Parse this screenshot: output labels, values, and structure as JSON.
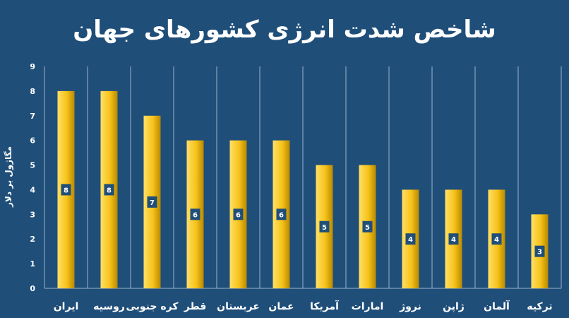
{
  "chart_data": {
    "type": "bar",
    "title": "شاخص شدت انرژی کشورهای جهان",
    "ylabel": "مگاژول بر دلار",
    "xlabel": "",
    "categories": [
      "ایران",
      "روسیه",
      "کره جنوبی",
      "قطر",
      "عربستان",
      "عمان",
      "آمریکا",
      "امارات",
      "نروژ",
      "ژاپن",
      "آلمان",
      "ترکیه"
    ],
    "values": [
      8,
      8,
      7,
      6,
      6,
      6,
      5,
      5,
      4,
      4,
      4,
      3
    ],
    "ylim": [
      0,
      9
    ],
    "yticks": [
      0,
      1,
      2,
      3,
      4,
      5,
      6,
      7,
      8,
      9
    ],
    "grid": "vertical separators",
    "legend": "none",
    "data_labels": true,
    "colors": {
      "background": "#1f4e79",
      "bar_light": "#ffe066",
      "bar_mid": "#f7c21a",
      "bar_dark": "#b88a00",
      "label_box": "#1f4e79",
      "grid": "#9db3cc",
      "text": "#ffffff"
    }
  }
}
